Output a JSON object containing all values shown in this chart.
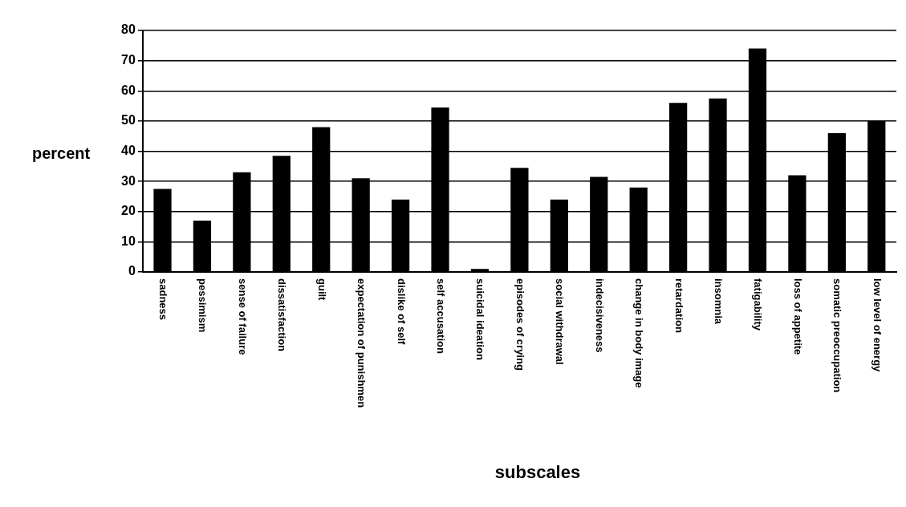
{
  "chart_data": {
    "type": "bar",
    "xlabel": "subscales",
    "ylabel": "percent",
    "categories": [
      "sadness",
      "pessimism",
      "sense of failure",
      "dissatisfaction",
      "guilt",
      "expectation of punishmen",
      "dislike of self",
      "self accusation",
      "suicidal ideation",
      "episodes of crying",
      "social withdrawal",
      "indecisiveness",
      "change in body image",
      "retardation",
      "insomnia",
      "fatigability",
      "loss of appetite",
      "somatic preoccupation",
      "low level of energy"
    ],
    "values": [
      27.5,
      17,
      33,
      38.5,
      48,
      31,
      24,
      54.5,
      1,
      34.5,
      24,
      31.5,
      28,
      56,
      57.5,
      74,
      32,
      46,
      50
    ],
    "color": "#000000",
    "ylim": [
      0,
      80
    ],
    "yticks": [
      0,
      10,
      20,
      30,
      40,
      50,
      60,
      70,
      80
    ],
    "grid": "y",
    "legend": false
  }
}
